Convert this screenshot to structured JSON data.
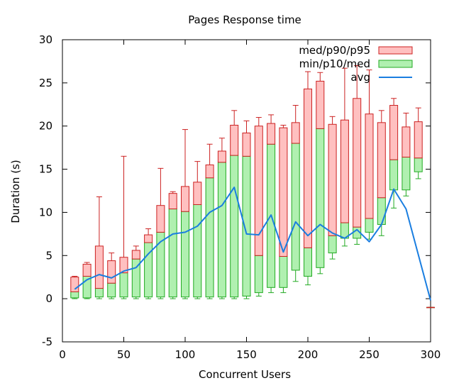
{
  "chart_data": {
    "type": "candlestick",
    "title": "Pages Response time",
    "xlabel": "Concurrent Users",
    "ylabel": "Duration (s)",
    "xlim": [
      0,
      300
    ],
    "ylim": [
      -5,
      30
    ],
    "xticks": [
      0,
      50,
      100,
      150,
      200,
      250,
      300
    ],
    "yticks": [
      -5,
      0,
      5,
      10,
      15,
      20,
      25,
      30
    ],
    "legend_position": "top-right",
    "colors": {
      "upper_fill": "#ffc0c0",
      "upper_stroke": "#cc2222",
      "lower_fill": "#b0f0b0",
      "lower_stroke": "#22aa22",
      "avg_line": "#1a7ee0"
    },
    "legend": [
      {
        "label": "med/p90/p95",
        "kind": "upper"
      },
      {
        "label": "min/p10/med",
        "kind": "lower"
      },
      {
        "label": "avg",
        "kind": "line"
      }
    ],
    "series": [
      {
        "x": 10,
        "min": 0.0,
        "p10": 0.1,
        "med": 0.8,
        "p90": 2.5,
        "p95": 2.6,
        "avg": 1.1
      },
      {
        "x": 20,
        "min": 0.0,
        "p10": 0.1,
        "med": 2.6,
        "p90": 4.0,
        "p95": 4.2,
        "avg": 2.2
      },
      {
        "x": 30,
        "min": 0.0,
        "p10": 0.2,
        "med": 1.2,
        "p90": 6.1,
        "p95": 11.8,
        "avg": 2.8
      },
      {
        "x": 40,
        "min": 0.0,
        "p10": 0.2,
        "med": 1.8,
        "p90": 4.4,
        "p95": 5.3,
        "avg": 2.4
      },
      {
        "x": 50,
        "min": 0.0,
        "p10": 0.2,
        "med": 3.0,
        "p90": 4.8,
        "p95": 16.5,
        "avg": 3.2
      },
      {
        "x": 60,
        "min": 0.0,
        "p10": 0.2,
        "med": 4.6,
        "p90": 5.6,
        "p95": 6.1,
        "avg": 3.6
      },
      {
        "x": 70,
        "min": 0.0,
        "p10": 0.2,
        "med": 6.5,
        "p90": 7.4,
        "p95": 8.1,
        "avg": 5.2
      },
      {
        "x": 80,
        "min": 0.0,
        "p10": 0.2,
        "med": 7.7,
        "p90": 10.8,
        "p95": 15.1,
        "avg": 6.6
      },
      {
        "x": 90,
        "min": 0.0,
        "p10": 0.2,
        "med": 10.4,
        "p90": 12.2,
        "p95": 12.4,
        "avg": 7.5
      },
      {
        "x": 100,
        "min": 0.0,
        "p10": 0.2,
        "med": 10.1,
        "p90": 13.0,
        "p95": 19.6,
        "avg": 7.7
      },
      {
        "x": 110,
        "min": 0.0,
        "p10": 0.2,
        "med": 10.9,
        "p90": 13.5,
        "p95": 15.9,
        "avg": 8.4
      },
      {
        "x": 120,
        "min": 0.0,
        "p10": 0.2,
        "med": 14.0,
        "p90": 15.5,
        "p95": 17.9,
        "avg": 10.0
      },
      {
        "x": 130,
        "min": 0.0,
        "p10": 0.2,
        "med": 15.8,
        "p90": 17.1,
        "p95": 18.6,
        "avg": 10.8
      },
      {
        "x": 140,
        "min": 0.0,
        "p10": 0.2,
        "med": 16.6,
        "p90": 20.1,
        "p95": 21.8,
        "avg": 12.9
      },
      {
        "x": 150,
        "min": 0.0,
        "p10": 0.3,
        "med": 16.5,
        "p90": 19.2,
        "p95": 20.6,
        "avg": 7.5
      },
      {
        "x": 160,
        "min": 0.3,
        "p10": 0.7,
        "med": 5.0,
        "p90": 20.0,
        "p95": 21.0,
        "avg": 7.4
      },
      {
        "x": 170,
        "min": 0.7,
        "p10": 1.3,
        "med": 17.9,
        "p90": 20.3,
        "p95": 21.3,
        "avg": 9.7
      },
      {
        "x": 180,
        "min": 0.7,
        "p10": 1.3,
        "med": 4.9,
        "p90": 19.8,
        "p95": 20.1,
        "avg": 5.4
      },
      {
        "x": 190,
        "min": 2.0,
        "p10": 3.3,
        "med": 18.0,
        "p90": 20.4,
        "p95": 22.4,
        "avg": 8.9
      },
      {
        "x": 200,
        "min": 1.6,
        "p10": 2.6,
        "med": 5.9,
        "p90": 24.3,
        "p95": 26.3,
        "avg": 7.3
      },
      {
        "x": 210,
        "min": 2.9,
        "p10": 3.6,
        "med": 19.7,
        "p90": 25.2,
        "p95": 26.2,
        "avg": 8.6
      },
      {
        "x": 220,
        "min": 4.6,
        "p10": 5.3,
        "med": 7.3,
        "p90": 20.2,
        "p95": 21.1,
        "avg": 7.6
      },
      {
        "x": 230,
        "min": 6.1,
        "p10": 7.0,
        "med": 8.8,
        "p90": 20.7,
        "p95": 26.7,
        "avg": 7.0
      },
      {
        "x": 240,
        "min": 6.3,
        "p10": 7.0,
        "med": 8.3,
        "p90": 23.2,
        "p95": 27.0,
        "avg": 8.0
      },
      {
        "x": 250,
        "min": 6.9,
        "p10": 7.7,
        "med": 9.3,
        "p90": 21.4,
        "p95": 26.5,
        "avg": 6.6
      },
      {
        "x": 260,
        "min": 7.3,
        "p10": 8.6,
        "med": 11.7,
        "p90": 20.4,
        "p95": 21.8,
        "avg": 8.6
      },
      {
        "x": 270,
        "min": 10.5,
        "p10": 12.6,
        "med": 16.1,
        "p90": 22.4,
        "p95": 23.2,
        "avg": 12.7
      },
      {
        "x": 280,
        "min": 11.9,
        "p10": 12.6,
        "med": 16.4,
        "p90": 19.9,
        "p95": 21.5,
        "avg": 10.4
      },
      {
        "x": 290,
        "min": 13.9,
        "p10": 14.7,
        "med": 16.3,
        "p90": 20.5,
        "p95": 22.1,
        "avg": null
      },
      {
        "x": 300,
        "min": -1.0,
        "p10": -1.0,
        "med": -1.0,
        "p90": -1.0,
        "p95": -1.0,
        "avg": -0.2
      }
    ]
  }
}
